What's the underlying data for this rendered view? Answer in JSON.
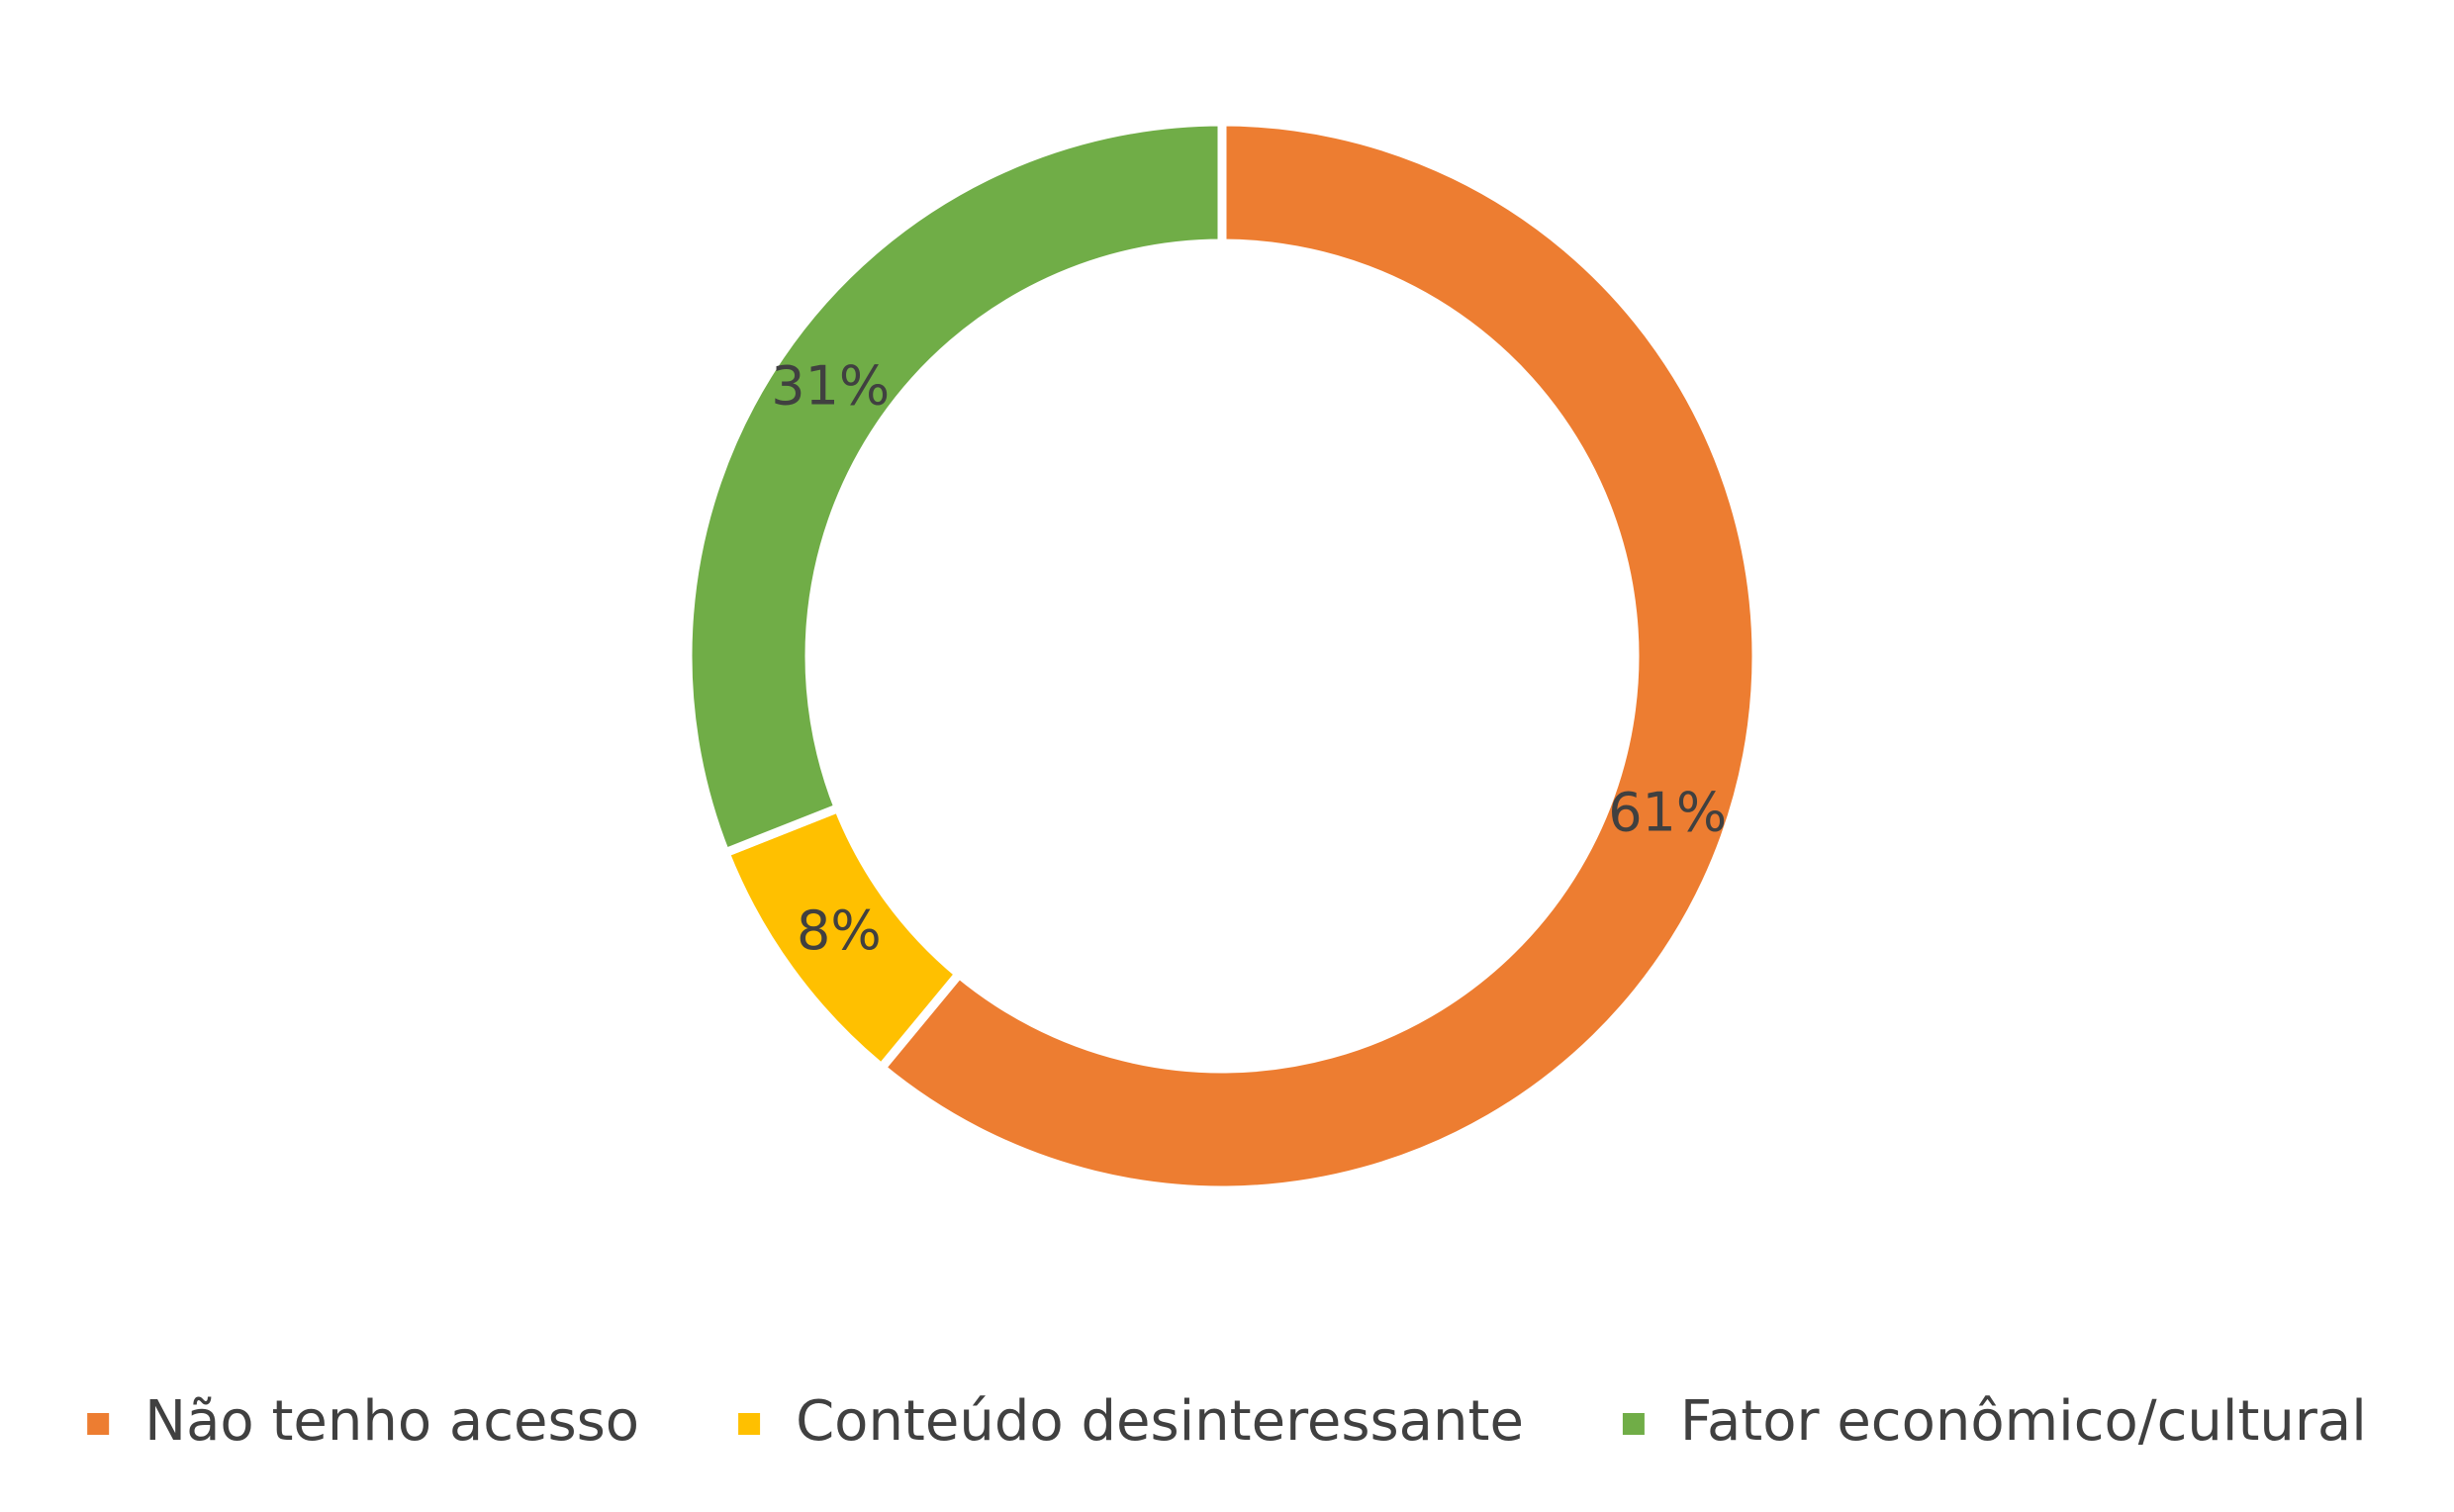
{
  "chart_data": {
    "type": "donut",
    "categories": [
      "Não tenho acesso",
      "Conteúdo desinteressante",
      "Fator econômico/cultural"
    ],
    "values": [
      61,
      8,
      31
    ],
    "value_labels": [
      "61%",
      "8%",
      "31%"
    ],
    "colors": [
      "#ed7d31",
      "#ffc000",
      "#70ad47"
    ],
    "legend": "bottom"
  }
}
